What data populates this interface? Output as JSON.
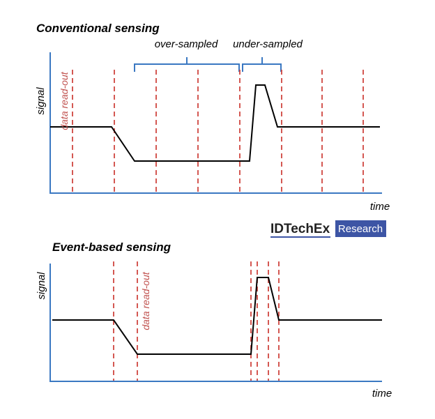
{
  "conventional": {
    "title": "Conventional sensing",
    "over_label": "over-sampled",
    "under_label": "under-sampled",
    "y_label": "signal",
    "readout_label": "data read-out",
    "x_label": "time"
  },
  "logo": {
    "name": "IDTechEx",
    "badge": "Research"
  },
  "event": {
    "title": "Event-based sensing",
    "y_label": "signal",
    "readout_label": "data read-out",
    "x_label": "time"
  }
}
